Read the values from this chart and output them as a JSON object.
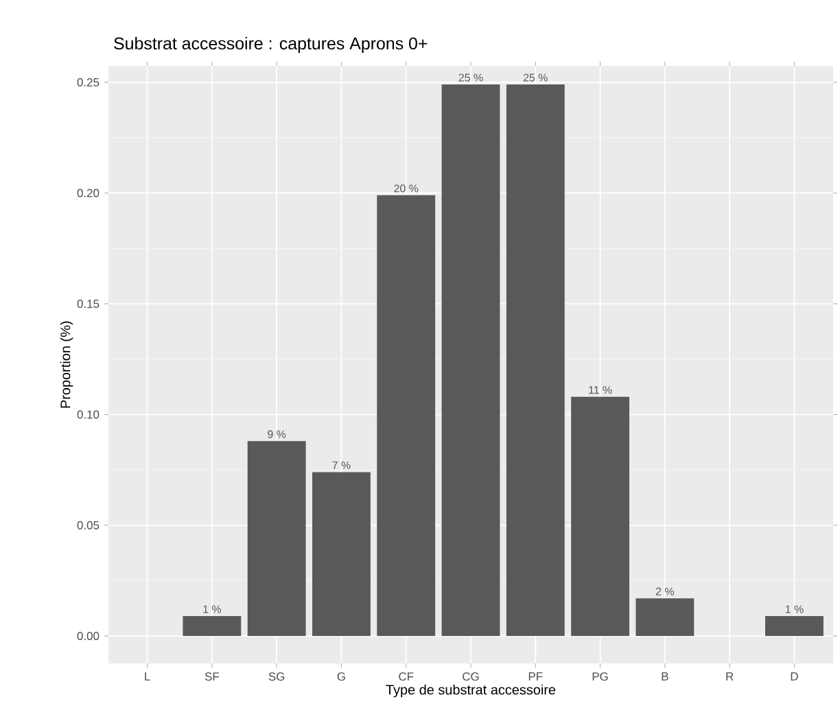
{
  "chart_data": {
    "type": "bar",
    "title": "Substrat accessoire : captures Aprons 0+",
    "xlabel": "Type de substrat accessoire",
    "ylabel": "Proportion (%)",
    "categories": [
      "L",
      "SF",
      "SG",
      "G",
      "CF",
      "CG",
      "PF",
      "PG",
      "B",
      "R",
      "D"
    ],
    "values": [
      null,
      0.009,
      0.088,
      0.074,
      0.199,
      0.249,
      0.249,
      0.108,
      0.017,
      null,
      0.009
    ],
    "value_labels": [
      null,
      "1 %",
      "9 %",
      "7 %",
      "20 %",
      "25 %",
      "25 %",
      "11 %",
      "2 %",
      null,
      "1 %"
    ],
    "color": "#595959",
    "ylim": [
      -0.0124,
      0.2574
    ],
    "yticks": [
      {
        "value": 0,
        "label": "0.00"
      },
      {
        "value": 0.05,
        "label": "0.05"
      },
      {
        "value": 0.1,
        "label": "0.10"
      },
      {
        "value": 0.15,
        "label": "0.15"
      },
      {
        "value": 0.2,
        "label": "0.20"
      },
      {
        "value": 0.25,
        "label": "0.25"
      }
    ],
    "grid": true
  }
}
